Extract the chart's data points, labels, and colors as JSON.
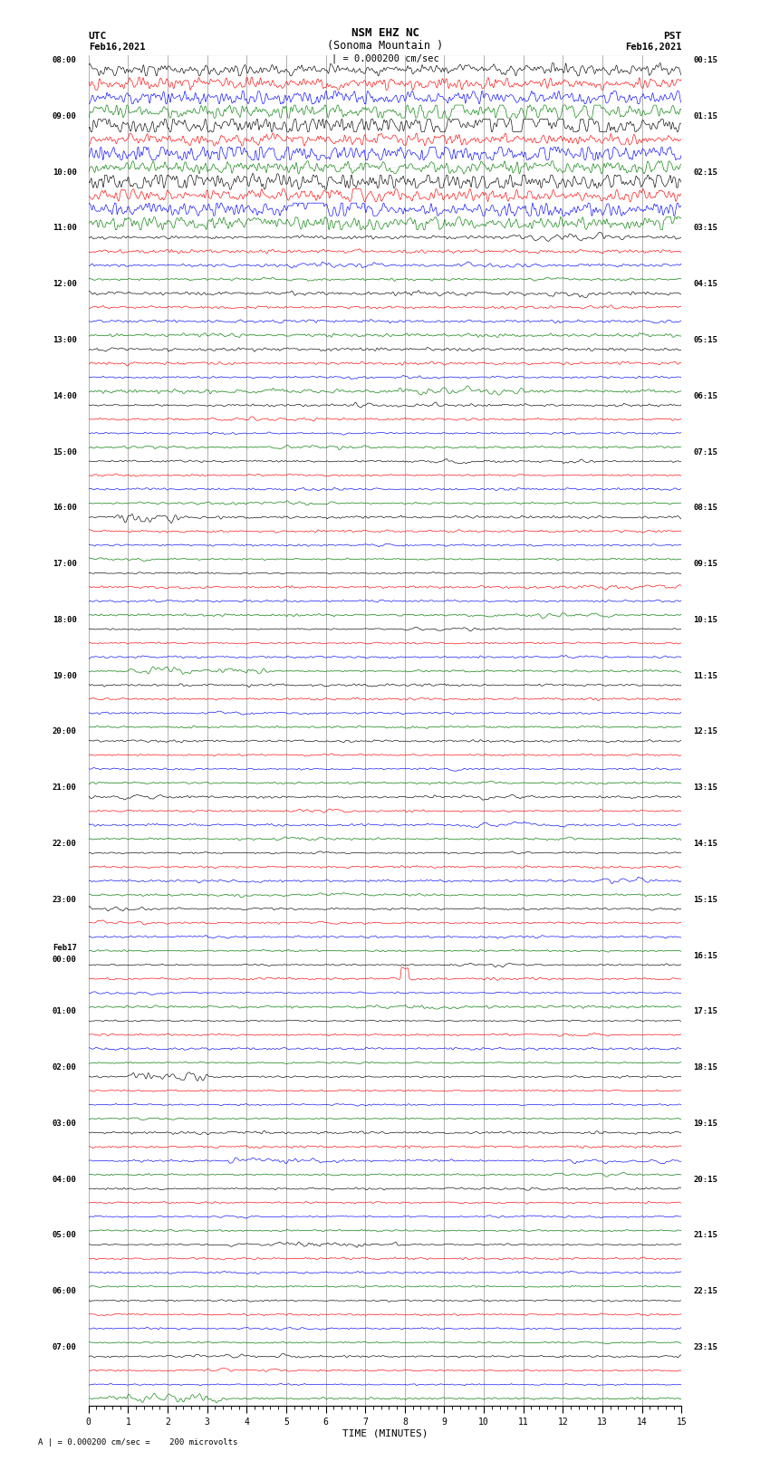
{
  "title_line1": "NSM EHZ NC",
  "title_line2": "(Sonoma Mountain )",
  "title_scale": "| = 0.000200 cm/sec",
  "label_utc": "UTC",
  "label_pst": "PST",
  "label_date_left": "Feb16,2021",
  "label_date_right": "Feb16,2021",
  "xlabel": "TIME (MINUTES)",
  "footnote": "A | = 0.000200 cm/sec =    200 microvolts",
  "left_labels": [
    "08:00",
    "09:00",
    "10:00",
    "11:00",
    "12:00",
    "13:00",
    "14:00",
    "15:00",
    "16:00",
    "17:00",
    "18:00",
    "19:00",
    "20:00",
    "21:00",
    "22:00",
    "23:00",
    "Feb17\n00:00",
    "01:00",
    "02:00",
    "03:00",
    "04:00",
    "05:00",
    "06:00",
    "07:00"
  ],
  "right_labels": [
    "00:15",
    "01:15",
    "02:15",
    "03:15",
    "04:15",
    "05:15",
    "06:15",
    "07:15",
    "08:15",
    "09:15",
    "10:15",
    "11:15",
    "12:15",
    "13:15",
    "14:15",
    "15:15",
    "16:15",
    "17:15",
    "18:15",
    "19:15",
    "20:15",
    "21:15",
    "22:15",
    "23:15"
  ],
  "n_groups": 24,
  "traces_per_group": 4,
  "colors_cycle": [
    "black",
    "red",
    "blue",
    "green"
  ],
  "bg_color": "white",
  "xmin": 0,
  "xmax": 15,
  "xticks": [
    0,
    1,
    2,
    3,
    4,
    5,
    6,
    7,
    8,
    9,
    10,
    11,
    12,
    13,
    14,
    15
  ],
  "grid_color": "#777777",
  "title_fontsize": 9,
  "tick_fontsize": 7,
  "label_fontsize": 8
}
